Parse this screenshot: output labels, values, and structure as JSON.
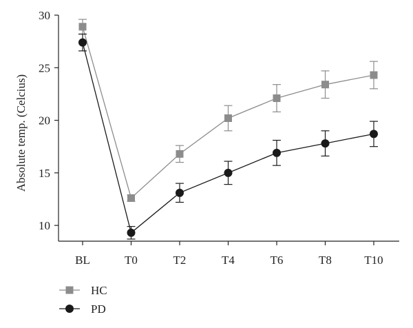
{
  "chart_data": {
    "type": "line",
    "title": "",
    "xlabel": "",
    "ylabel": "Absolute temp. (Celcius)",
    "categories": [
      "BL",
      "T0",
      "T2",
      "T4",
      "T6",
      "T8",
      "T10"
    ],
    "ylim": [
      8.5,
      30
    ],
    "yticks": [
      10,
      15,
      20,
      25,
      30
    ],
    "grid": false,
    "legend_position": "bottom-left",
    "series": [
      {
        "name": "HC",
        "marker": "square",
        "color": "#8c8c8c",
        "values": [
          28.9,
          12.6,
          16.8,
          20.2,
          22.1,
          23.4,
          24.3
        ],
        "error": [
          0.7,
          0.3,
          0.8,
          1.2,
          1.3,
          1.3,
          1.3
        ]
      },
      {
        "name": "PD",
        "marker": "circle",
        "color": "#1a1a1a",
        "values": [
          27.4,
          9.3,
          13.1,
          15.0,
          16.9,
          17.8,
          18.7
        ],
        "error": [
          0.8,
          0.6,
          0.9,
          1.1,
          1.2,
          1.2,
          1.2
        ]
      }
    ]
  }
}
